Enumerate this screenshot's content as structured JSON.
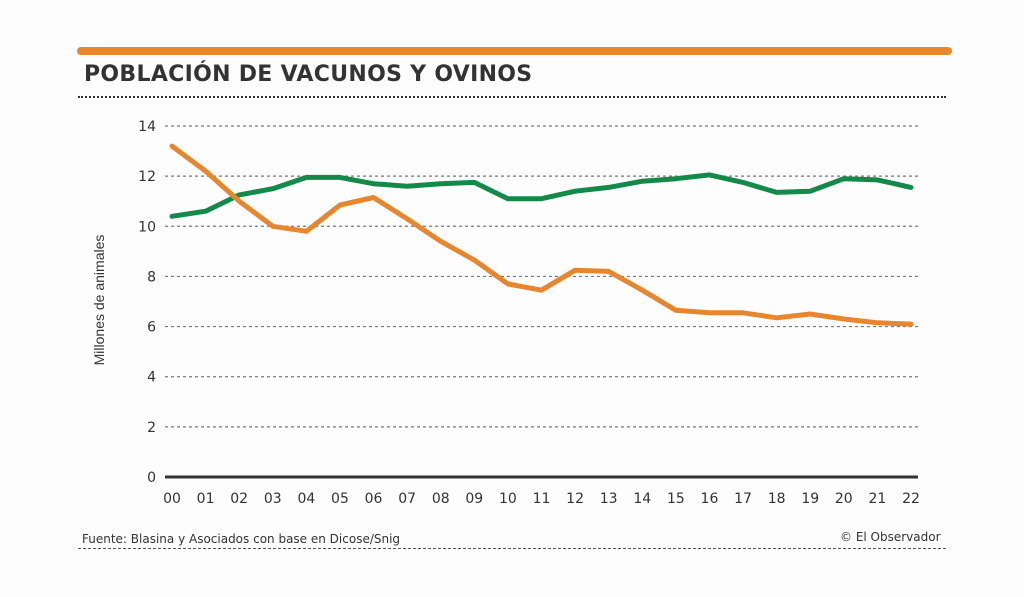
{
  "header": {
    "title": "POBLACIÓN DE VACUNOS Y OVINOS"
  },
  "footer": {
    "source": "Fuente: Blasina y Asociados con base en Dicose/Snig",
    "copyright": "© El Observador"
  },
  "colors": {
    "accent": "#e8862e",
    "vacunos": "#138a4a",
    "ovinos": "#e8862e"
  },
  "chart_data": {
    "type": "line",
    "title": "POBLACIÓN DE VACUNOS Y OVINOS",
    "xlabel": "",
    "ylabel": "Millones de animales",
    "ylim": [
      0,
      14
    ],
    "yticks": [
      0,
      2,
      4,
      6,
      8,
      10,
      12,
      14
    ],
    "grid": true,
    "legend": "none",
    "x": [
      "00",
      "01",
      "02",
      "03",
      "04",
      "05",
      "06",
      "07",
      "08",
      "09",
      "10",
      "11",
      "12",
      "13",
      "14",
      "15",
      "16",
      "17",
      "18",
      "19",
      "20",
      "21",
      "22"
    ],
    "series": [
      {
        "name": "Vacunos",
        "color": "#138a4a",
        "values": [
          10.4,
          10.6,
          11.25,
          11.5,
          11.95,
          11.95,
          11.7,
          11.6,
          11.7,
          11.75,
          11.1,
          11.1,
          11.4,
          11.55,
          11.8,
          11.9,
          12.05,
          11.75,
          11.35,
          11.4,
          11.9,
          11.85,
          11.55
        ]
      },
      {
        "name": "Ovinos",
        "color": "#e8862e",
        "values": [
          13.2,
          12.2,
          11.0,
          10.0,
          9.8,
          10.85,
          11.15,
          10.3,
          9.4,
          8.65,
          7.7,
          7.45,
          8.25,
          8.2,
          7.45,
          6.65,
          6.55,
          6.55,
          6.35,
          6.5,
          6.3,
          6.15,
          6.1
        ]
      }
    ]
  }
}
